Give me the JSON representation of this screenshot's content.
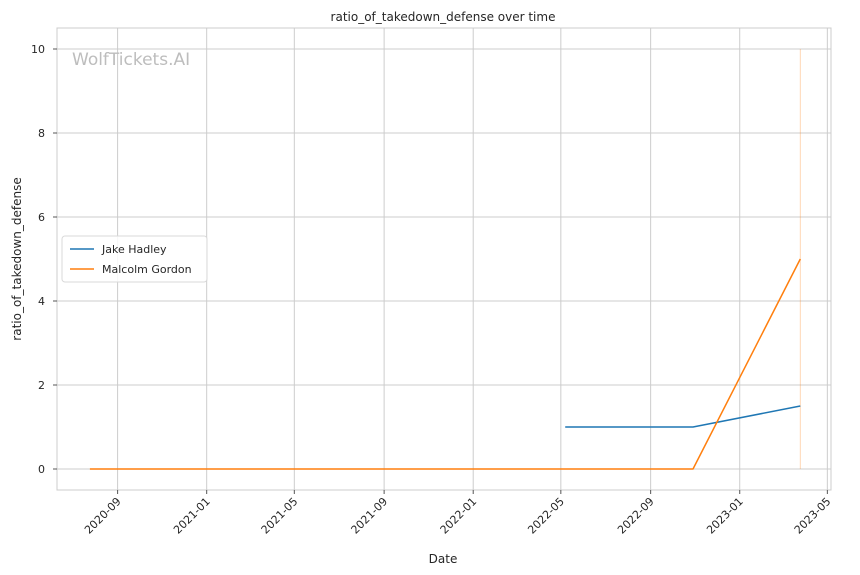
{
  "chart_data": {
    "type": "line",
    "title": "ratio_of_takedown_defense over time",
    "xlabel": "Date",
    "ylabel": "ratio_of_takedown_defense",
    "watermark": "WolfTickets.AI",
    "xlim": [
      "2020-06-10",
      "2023-05-06"
    ],
    "ylim": [
      -0.5,
      10.5
    ],
    "x_ticks": [
      "2020-09-01",
      "2021-01-01",
      "2021-05-01",
      "2021-09-01",
      "2022-01-01",
      "2022-05-01",
      "2022-09-01",
      "2023-01-01",
      "2023-05-01"
    ],
    "x_tick_labels": [
      "2020-09",
      "2021-01",
      "2021-05",
      "2021-09",
      "2022-01",
      "2022-05",
      "2022-09",
      "2023-01",
      "2023-05"
    ],
    "y_ticks": [
      0,
      2,
      4,
      6,
      8,
      10
    ],
    "y_tick_labels": [
      "0",
      "2",
      "4",
      "6",
      "8",
      "10"
    ],
    "grid": true,
    "legend_position": "center-left",
    "series": [
      {
        "name": "Jake Hadley",
        "color": "#1f77b4",
        "x": [
          "2022-05-07",
          "2022-10-29",
          "2023-03-25"
        ],
        "y": [
          1.0,
          1.0,
          1.5
        ]
      },
      {
        "name": "Malcolm Gordon",
        "color": "#ff7f0e",
        "x": [
          "2020-07-25",
          "2022-10-29",
          "2023-03-25"
        ],
        "y": [
          0.0,
          0.0,
          5.0
        ]
      }
    ],
    "vertical_markers": [
      {
        "x": "2023-03-25",
        "y_from": 0,
        "y_to": 10,
        "color": "#ff7f0e"
      }
    ]
  }
}
